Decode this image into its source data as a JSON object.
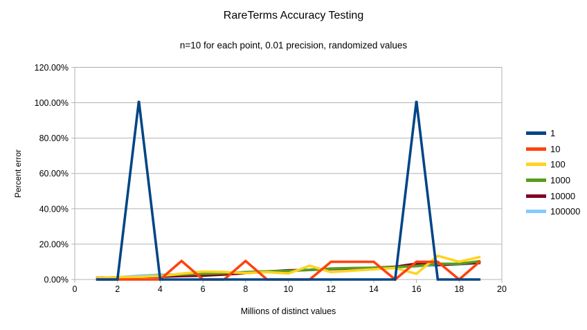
{
  "chart_data": {
    "type": "line",
    "title": "RareTerms Accuracy Testing",
    "subtitle": "n=10 for each point, 0.01 precision, randomized values",
    "xlabel": "Millions of distinct values",
    "ylabel": "Percent error",
    "xlim": [
      0,
      20
    ],
    "ylim": [
      0,
      120
    ],
    "grid": true,
    "legend_position": "right",
    "x_tick_values": [
      0,
      2,
      4,
      6,
      8,
      10,
      12,
      14,
      16,
      18,
      20
    ],
    "x_tick_labels": [
      "0",
      "2",
      "4",
      "6",
      "8",
      "10",
      "12",
      "14",
      "16",
      "18",
      "20"
    ],
    "y_tick_values": [
      0,
      20,
      40,
      60,
      80,
      100,
      120
    ],
    "y_tick_labels": [
      "0.00%",
      "20.00%",
      "40.00%",
      "60.00%",
      "80.00%",
      "100.00%",
      "120.00%"
    ],
    "x": [
      1,
      2,
      3,
      4,
      5,
      6,
      7,
      8,
      9,
      10,
      11,
      12,
      13,
      14,
      15,
      16,
      17,
      18,
      19
    ],
    "series": [
      {
        "name": "1",
        "color": "#004586",
        "values": [
          0,
          0,
          101,
          0,
          0,
          0,
          0,
          0,
          0,
          0,
          0,
          0,
          0,
          0,
          0,
          101,
          0,
          0,
          0
        ]
      },
      {
        "name": "10",
        "color": "#FF420E",
        "values": [
          0,
          0,
          0,
          0,
          10.5,
          0,
          0,
          10.5,
          0,
          0,
          0,
          10,
          10,
          10,
          0,
          10,
          10,
          0,
          10.5
        ]
      },
      {
        "name": "100",
        "color": "#FFD320",
        "values": [
          0.8,
          1.3,
          1.5,
          2.0,
          3.3,
          4.5,
          4.3,
          3.6,
          4.2,
          3.4,
          7.8,
          4.2,
          5.0,
          5.8,
          6.5,
          3.2,
          13.4,
          10.0,
          12.8
        ]
      },
      {
        "name": "1000",
        "color": "#579D1C",
        "values": [
          0.5,
          0.8,
          1.3,
          2.2,
          2.8,
          3.2,
          3.6,
          4.2,
          4.6,
          4.9,
          5.4,
          6.2,
          6.5,
          6.6,
          7.0,
          7.6,
          8.9,
          8.9,
          10.4
        ]
      },
      {
        "name": "10000",
        "color": "#7E0021",
        "values": [
          0.9,
          1.2,
          1.4,
          1.6,
          1.9,
          2.2,
          2.8,
          3.6,
          4.5,
          5.2,
          5.4,
          6.0,
          6.3,
          6.6,
          7.2,
          9.0,
          8.2,
          8.8,
          9.5
        ]
      },
      {
        "name": "100000",
        "color": "#83CAFF",
        "values": [
          0.8,
          1.2,
          2.2,
          2.7,
          3.0,
          3.2,
          3.5,
          3.9,
          4.3,
          4.7,
          5.6,
          5.8,
          6.1,
          6.5,
          7.0,
          7.5,
          8.0,
          8.5,
          9.2
        ]
      }
    ],
    "draw_order": [
      "100000",
      "10000",
      "1000",
      "100",
      "10",
      "1"
    ]
  },
  "colors": {
    "grid": "#b3b3b3",
    "axis": "#b3b3b3",
    "text": "#000000",
    "background": "#ffffff"
  }
}
